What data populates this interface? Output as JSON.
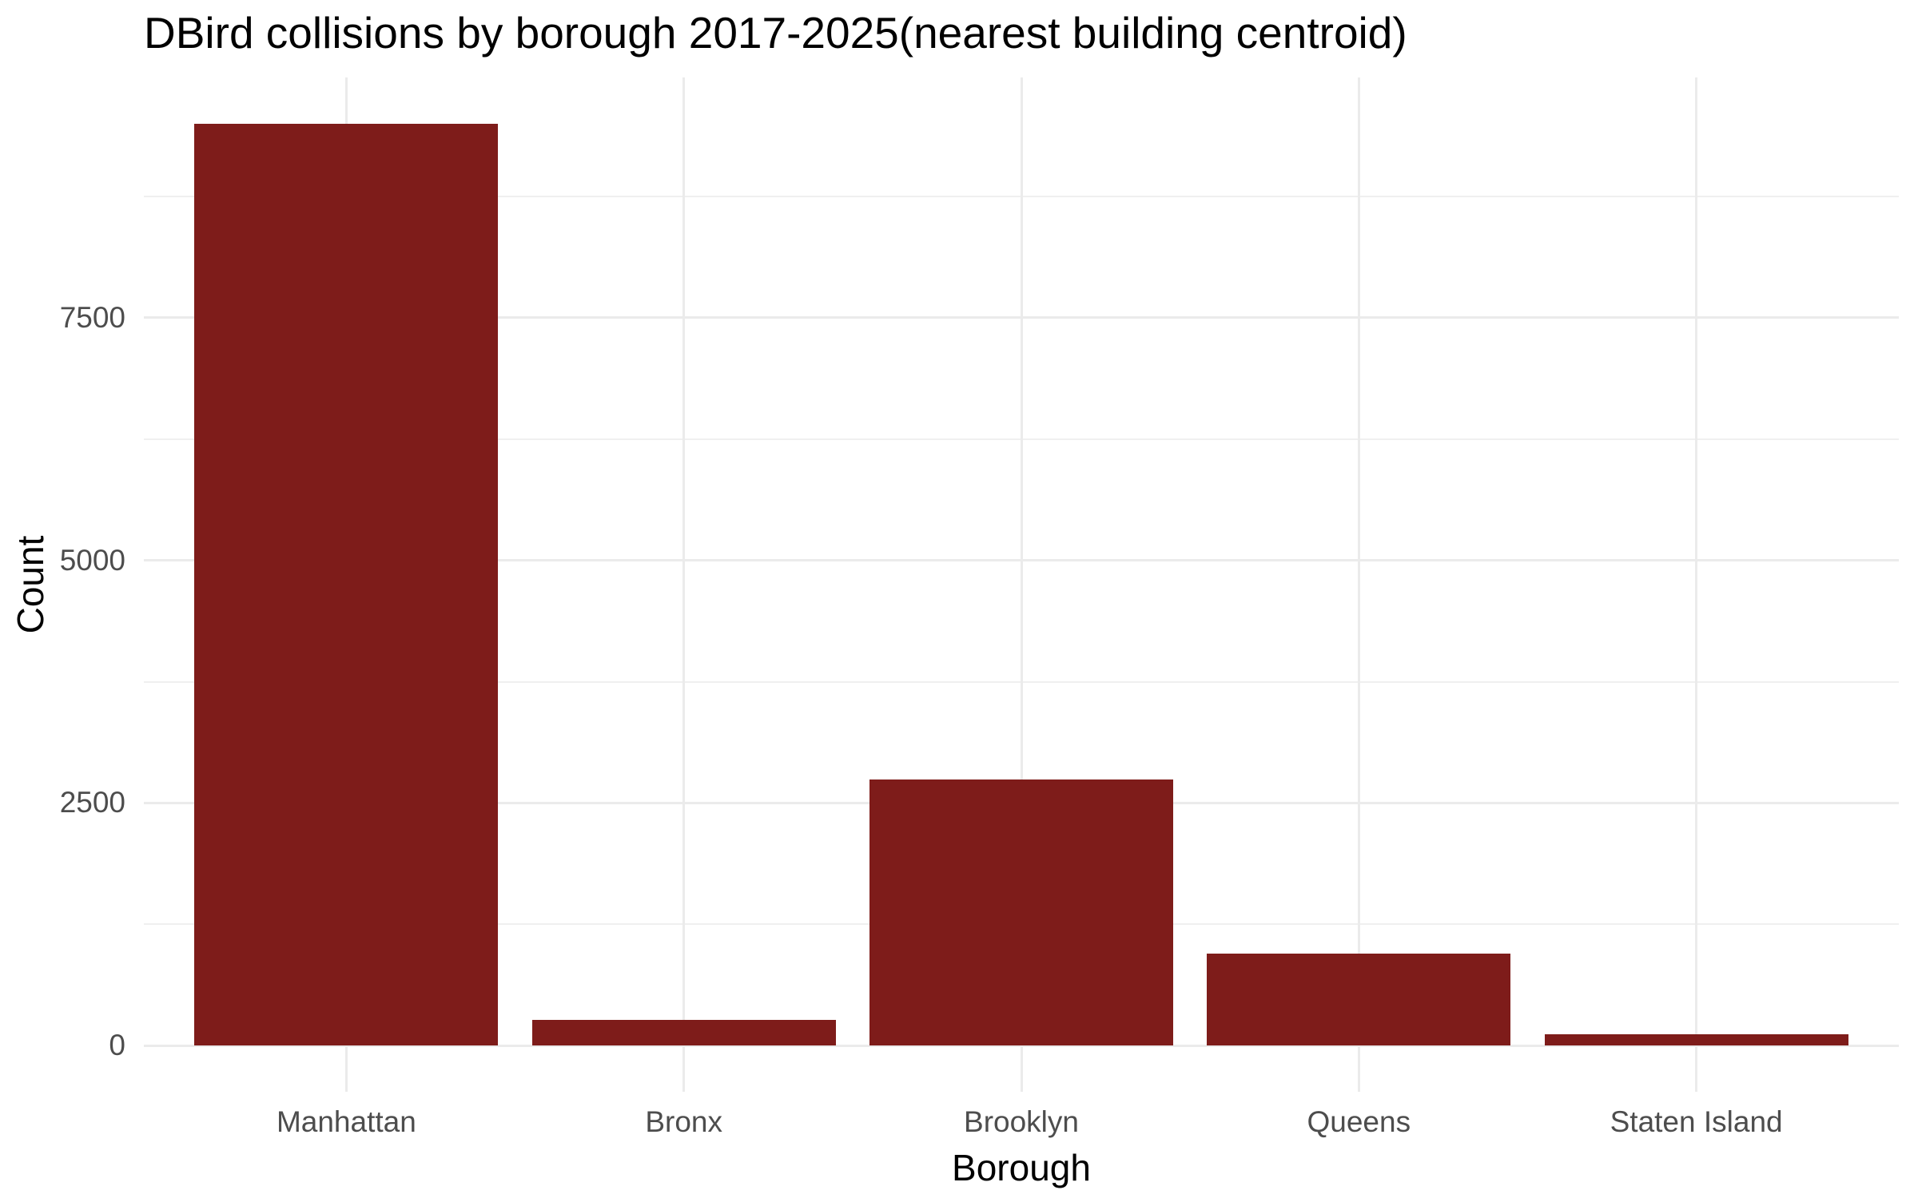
{
  "chart_data": {
    "type": "bar",
    "title": "DBird collisions by borough 2017-2025(nearest building centroid)",
    "xlabel": "Borough",
    "ylabel": "Count",
    "categories": [
      "Manhattan",
      "Bronx",
      "Brooklyn",
      "Queens",
      "Staten Island"
    ],
    "values": [
      9500,
      265,
      2740,
      945,
      115
    ],
    "y_ticks": [
      0,
      2500,
      5000,
      7500
    ],
    "y_minor_ticks": [
      1250,
      3750,
      6250,
      8750
    ],
    "ylim": [
      0,
      9975
    ],
    "grid": "on",
    "legend": "none"
  },
  "colors": {
    "bar": "#7E1C1A",
    "grid_major": "#EBEBEB",
    "grid_minor": "#F0F0F0",
    "tick_label": "#4D4D4D",
    "axis_title": "#000000",
    "title": "#000000",
    "background": "#FFFFFF"
  }
}
